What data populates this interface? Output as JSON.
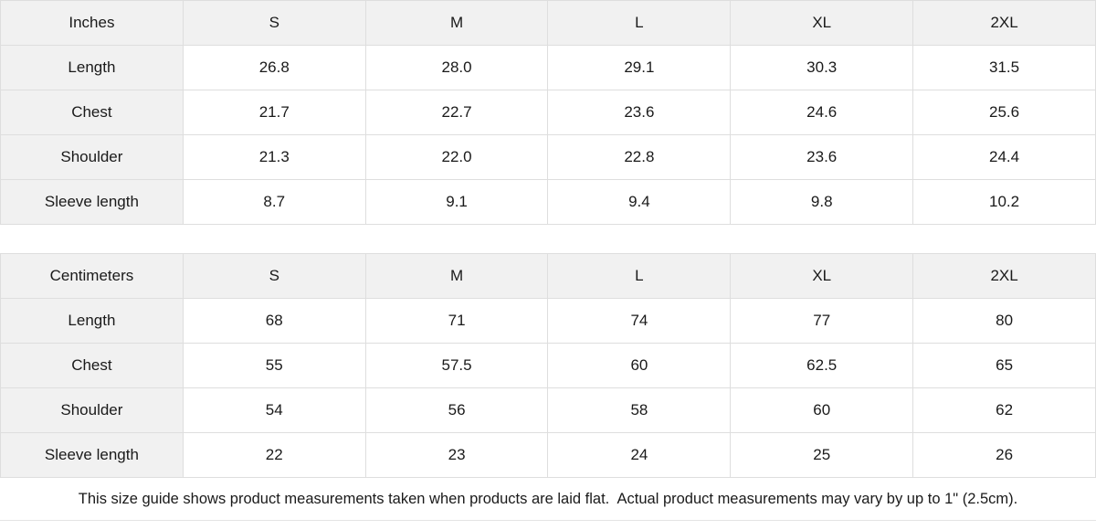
{
  "tables": [
    {
      "unit_label": "Inches",
      "sizes": [
        "S",
        "M",
        "L",
        "XL",
        "2XL"
      ],
      "rows": [
        {
          "label": "Length",
          "values": [
            "26.8",
            "28.0",
            "29.1",
            "30.3",
            "31.5"
          ]
        },
        {
          "label": "Chest",
          "values": [
            "21.7",
            "22.7",
            "23.6",
            "24.6",
            "25.6"
          ]
        },
        {
          "label": "Shoulder",
          "values": [
            "21.3",
            "22.0",
            "22.8",
            "23.6",
            "24.4"
          ]
        },
        {
          "label": "Sleeve length",
          "values": [
            "8.7",
            "9.1",
            "9.4",
            "9.8",
            "10.2"
          ]
        }
      ]
    },
    {
      "unit_label": "Centimeters",
      "sizes": [
        "S",
        "M",
        "L",
        "XL",
        "2XL"
      ],
      "rows": [
        {
          "label": "Length",
          "values": [
            "68",
            "71",
            "74",
            "77",
            "80"
          ]
        },
        {
          "label": "Chest",
          "values": [
            "55",
            "57.5",
            "60",
            "62.5",
            "65"
          ]
        },
        {
          "label": "Shoulder",
          "values": [
            "54",
            "56",
            "58",
            "60",
            "62"
          ]
        },
        {
          "label": "Sleeve length",
          "values": [
            "22",
            "23",
            "24",
            "25",
            "26"
          ]
        }
      ]
    }
  ],
  "footer": {
    "note": "This size guide shows product measurements taken when products are laid flat.  Actual product measurements may vary by up to 1\" (2.5cm)."
  },
  "colors": {
    "header_bg": "#f1f1f1",
    "border": "#dedede",
    "text": "#1a1a1a",
    "divider": "#e4e4e4"
  }
}
